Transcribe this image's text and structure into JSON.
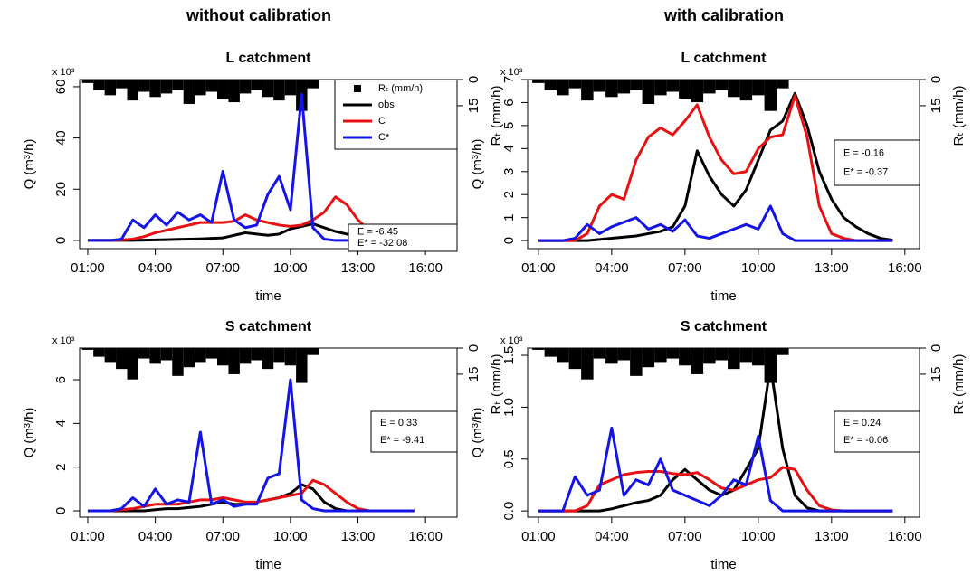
{
  "headers": [
    "without calibration",
    "with calibration"
  ],
  "chart_data": [
    {
      "type": "line",
      "title": "L catchment",
      "xlabel": "time",
      "ylabel": "Q (m³/h)",
      "y_multiplier": "x 10³",
      "y2label": "Rₜ (mm/h)",
      "x": [
        1,
        1.5,
        2,
        2.5,
        3,
        3.5,
        4,
        4.5,
        5,
        5.5,
        6,
        6.5,
        7,
        7.5,
        8,
        8.5,
        9,
        9.5,
        10,
        10.5,
        11,
        11.5,
        12,
        12.5,
        13,
        13.5,
        14,
        14.5,
        15,
        15.5
      ],
      "xlim": [
        0.64,
        17.4
      ],
      "xticks": [
        {
          "value": 1,
          "label": "01:00"
        },
        {
          "value": 4,
          "label": "04:00"
        },
        {
          "value": 7,
          "label": "07:00"
        },
        {
          "value": 10,
          "label": "10:00"
        },
        {
          "value": 13,
          "label": "13:00"
        },
        {
          "value": 16,
          "label": "16:00"
        }
      ],
      "ylim": [
        -3.2,
        62.8
      ],
      "yticks": [
        0,
        20,
        40,
        60
      ],
      "y2lim": [
        97,
        0
      ],
      "y2ticks": [
        0,
        15
      ],
      "legend": "top-right",
      "series": [
        {
          "name": "Rₜ (mm/h)",
          "type": "bar",
          "axis": "y2",
          "color": "#000000",
          "values": [
            2,
            6,
            9,
            5,
            12,
            7,
            10,
            8,
            6,
            14,
            9,
            7,
            11,
            13,
            8,
            6,
            10,
            12,
            9,
            18,
            5,
            0,
            0,
            0,
            0,
            0,
            0,
            0,
            0,
            0
          ]
        },
        {
          "name": "obs",
          "color": "#000000",
          "values": [
            0,
            0,
            0,
            0,
            0,
            0.1,
            0.2,
            0.3,
            0.4,
            0.5,
            0.6,
            0.8,
            1.0,
            2.0,
            3.0,
            2.5,
            2.0,
            2.5,
            4.5,
            5.5,
            6.5,
            5.0,
            3.5,
            2.5,
            1.5,
            1.0,
            0.5,
            0.3,
            0.1,
            0
          ]
        },
        {
          "name": "C",
          "color": "#e81010",
          "values": [
            0,
            0,
            0,
            0.2,
            0.5,
            1.5,
            3,
            4,
            5,
            6,
            7,
            7,
            7,
            7.5,
            10,
            8,
            7,
            6,
            5.5,
            6,
            8,
            11,
            17,
            14,
            8,
            4,
            1.5,
            0.5,
            0.1,
            0
          ]
        },
        {
          "name": "C*",
          "color": "#1414e6",
          "values": [
            0,
            0,
            0,
            0.5,
            8,
            5,
            10,
            6,
            11,
            8,
            10,
            7,
            27,
            8,
            5,
            6,
            18,
            25,
            12,
            57,
            5,
            0.5,
            0,
            0,
            0,
            0,
            0,
            0,
            0,
            0
          ]
        }
      ],
      "annotations": [
        "E = -6.45",
        "E* = -32.08"
      ]
    },
    {
      "type": "line",
      "title": "L catchment",
      "xlabel": "time",
      "ylabel": "Q (m³/h)",
      "y_multiplier": "x 10³",
      "y2label": "Rₜ (mm/h)",
      "x": [
        1,
        1.5,
        2,
        2.5,
        3,
        3.5,
        4,
        4.5,
        5,
        5.5,
        6,
        6.5,
        7,
        7.5,
        8,
        8.5,
        9,
        9.5,
        10,
        10.5,
        11,
        11.5,
        12,
        12.5,
        13,
        13.5,
        14,
        14.5,
        15,
        15.5
      ],
      "xlim": [
        0.56,
        16.6
      ],
      "xticks": [
        {
          "value": 1,
          "label": "01:00"
        },
        {
          "value": 4,
          "label": "04:00"
        },
        {
          "value": 7,
          "label": "07:00"
        },
        {
          "value": 10,
          "label": "10:00"
        },
        {
          "value": 13,
          "label": "13:00"
        },
        {
          "value": 16,
          "label": "16:00"
        }
      ],
      "ylim": [
        -0.35,
        7
      ],
      "yticks": [
        0,
        1,
        2,
        3,
        4,
        5,
        6,
        7
      ],
      "y2lim": [
        97,
        0
      ],
      "y2ticks": [
        0,
        15
      ],
      "series": [
        {
          "name": "Rₜ (mm/h)",
          "type": "bar",
          "axis": "y2",
          "color": "#000000",
          "values": [
            2,
            6,
            9,
            5,
            12,
            7,
            10,
            8,
            6,
            14,
            9,
            7,
            11,
            13,
            8,
            6,
            10,
            12,
            9,
            18,
            5,
            0,
            0,
            0,
            0,
            0,
            0,
            0,
            0,
            0
          ]
        },
        {
          "name": "obs",
          "color": "#000000",
          "values": [
            0,
            0,
            0,
            0,
            0,
            0.05,
            0.1,
            0.15,
            0.2,
            0.3,
            0.4,
            0.6,
            1.5,
            3.9,
            2.8,
            2.0,
            1.5,
            2.2,
            3.5,
            4.8,
            5.2,
            6.4,
            5.0,
            3.0,
            1.8,
            1.0,
            0.6,
            0.3,
            0.1,
            0.02
          ]
        },
        {
          "name": "C",
          "color": "#e81010",
          "values": [
            0,
            0,
            0,
            0,
            0.3,
            1.5,
            2.0,
            1.8,
            3.5,
            4.5,
            4.9,
            4.6,
            5.2,
            5.9,
            4.5,
            3.5,
            2.9,
            3.0,
            4.0,
            4.5,
            4.6,
            6.3,
            4.5,
            1.5,
            0.3,
            0.1,
            0,
            0,
            0,
            0
          ]
        },
        {
          "name": "C*",
          "color": "#1414e6",
          "values": [
            0,
            0,
            0,
            0.1,
            0.7,
            0.3,
            0.6,
            0.8,
            1.0,
            0.5,
            0.7,
            0.4,
            0.9,
            0.2,
            0.1,
            0.3,
            0.5,
            0.7,
            0.5,
            1.5,
            0.3,
            0,
            0,
            0,
            0,
            0,
            0,
            0,
            0,
            0
          ]
        }
      ],
      "annotations": [
        "E = -0.16",
        "E* = -0.37"
      ]
    },
    {
      "type": "line",
      "title": "S catchment",
      "xlabel": "time",
      "ylabel": "Q (m³/h)",
      "y_multiplier": "x 10³",
      "y2label": "Rₜ (mm/h)",
      "x": [
        1,
        1.5,
        2,
        2.5,
        3,
        3.5,
        4,
        4.5,
        5,
        5.5,
        6,
        6.5,
        7,
        7.5,
        8,
        8.5,
        9,
        9.5,
        10,
        10.5,
        11,
        11.5,
        12,
        12.5,
        13,
        13.5,
        14,
        14.5,
        15,
        15.5
      ],
      "xlim": [
        0.64,
        17.4
      ],
      "xticks": [
        {
          "value": 1,
          "label": "01:00"
        },
        {
          "value": 4,
          "label": "04:00"
        },
        {
          "value": 7,
          "label": "07:00"
        },
        {
          "value": 10,
          "label": "10:00"
        },
        {
          "value": 13,
          "label": "13:00"
        },
        {
          "value": 16,
          "label": "16:00"
        }
      ],
      "ylim": [
        -0.29,
        7.45
      ],
      "yticks": [
        0,
        2,
        4,
        6
      ],
      "y2lim": [
        97,
        0
      ],
      "y2ticks": [
        0,
        15
      ],
      "series": [
        {
          "name": "Rₜ (mm/h)",
          "type": "bar",
          "axis": "y2",
          "color": "#000000",
          "values": [
            1,
            5,
            8,
            12,
            18,
            6,
            9,
            7,
            16,
            11,
            8,
            6,
            10,
            15,
            9,
            7,
            12,
            8,
            10,
            20,
            4,
            0,
            0,
            0,
            0,
            0,
            0,
            0,
            0,
            0
          ]
        },
        {
          "name": "obs",
          "color": "#000000",
          "values": [
            0,
            0,
            0,
            0,
            0,
            0,
            0.05,
            0.1,
            0.1,
            0.15,
            0.2,
            0.3,
            0.4,
            0.3,
            0.3,
            0.4,
            0.5,
            0.6,
            0.8,
            1.2,
            1.0,
            0.4,
            0.1,
            0,
            0,
            0,
            0,
            0,
            0,
            0
          ]
        },
        {
          "name": "C",
          "color": "#e81010",
          "values": [
            0,
            0,
            0,
            0.05,
            0.1,
            0.2,
            0.3,
            0.3,
            0.3,
            0.4,
            0.5,
            0.5,
            0.6,
            0.5,
            0.4,
            0.4,
            0.5,
            0.6,
            0.7,
            0.8,
            1.4,
            1.2,
            0.8,
            0.4,
            0.1,
            0,
            0,
            0,
            0,
            0
          ]
        },
        {
          "name": "C*",
          "color": "#1414e6",
          "values": [
            0,
            0,
            0,
            0.1,
            0.6,
            0.2,
            1.0,
            0.3,
            0.5,
            0.4,
            3.6,
            0.3,
            0.5,
            0.2,
            0.3,
            0.3,
            1.5,
            1.7,
            6.0,
            0.5,
            0.1,
            0,
            0,
            0,
            0,
            0,
            0,
            0,
            0,
            0
          ]
        }
      ],
      "annotations": [
        "E = 0.33",
        "E* = -9.41"
      ]
    },
    {
      "type": "line",
      "title": "S catchment",
      "xlabel": "time",
      "ylabel": "Q (m³/h)",
      "y_multiplier": "x 10³",
      "y2label": "Rₜ (mm/h)",
      "x": [
        1,
        1.5,
        2,
        2.5,
        3,
        3.5,
        4,
        4.5,
        5,
        5.5,
        6,
        6.5,
        7,
        7.5,
        8,
        8.5,
        9,
        9.5,
        10,
        10.5,
        11,
        11.5,
        12,
        12.5,
        13,
        13.5,
        14,
        14.5,
        15,
        15.5
      ],
      "xlim": [
        0.56,
        16.6
      ],
      "xticks": [
        {
          "value": 1,
          "label": "01:00"
        },
        {
          "value": 4,
          "label": "04:00"
        },
        {
          "value": 7,
          "label": "07:00"
        },
        {
          "value": 10,
          "label": "10:00"
        },
        {
          "value": 13,
          "label": "13:00"
        },
        {
          "value": 16,
          "label": "16:00"
        }
      ],
      "ylim": [
        -0.06,
        1.57
      ],
      "yticks": [
        {
          "value": 0,
          "label": "0.0"
        },
        {
          "value": 0.5,
          "label": "0.5"
        },
        {
          "value": 1,
          "label": "1.0"
        },
        {
          "value": 1.5,
          "label": "1.5"
        }
      ],
      "y2lim": [
        97,
        0
      ],
      "y2ticks": [
        0,
        15
      ],
      "series": [
        {
          "name": "Rₜ (mm/h)",
          "type": "bar",
          "axis": "y2",
          "color": "#000000",
          "values": [
            1,
            5,
            8,
            12,
            18,
            6,
            9,
            7,
            16,
            11,
            8,
            6,
            10,
            15,
            9,
            7,
            12,
            8,
            10,
            20,
            4,
            0,
            0,
            0,
            0,
            0,
            0,
            0,
            0,
            0
          ]
        },
        {
          "name": "obs",
          "color": "#000000",
          "values": [
            0,
            0,
            0,
            0,
            0,
            0,
            0.02,
            0.05,
            0.08,
            0.1,
            0.15,
            0.3,
            0.4,
            0.3,
            0.2,
            0.15,
            0.2,
            0.4,
            0.6,
            1.4,
            0.6,
            0.15,
            0.03,
            0,
            0,
            0,
            0,
            0,
            0,
            0
          ]
        },
        {
          "name": "C",
          "color": "#e81010",
          "values": [
            0,
            0,
            0,
            0,
            0.05,
            0.25,
            0.3,
            0.35,
            0.37,
            0.38,
            0.38,
            0.36,
            0.35,
            0.37,
            0.3,
            0.22,
            0.2,
            0.25,
            0.3,
            0.32,
            0.42,
            0.4,
            0.2,
            0.05,
            0.01,
            0,
            0,
            0,
            0,
            0
          ]
        },
        {
          "name": "C*",
          "color": "#1414e6",
          "values": [
            0,
            0,
            0,
            0.33,
            0.15,
            0.2,
            0.8,
            0.15,
            0.3,
            0.25,
            0.5,
            0.2,
            0.15,
            0.1,
            0.05,
            0.15,
            0.3,
            0.25,
            0.72,
            0.1,
            0,
            0,
            0,
            0,
            0,
            0,
            0,
            0,
            0,
            0
          ]
        }
      ],
      "annotations": [
        "E = 0.24",
        "E* = -0.06"
      ]
    }
  ]
}
